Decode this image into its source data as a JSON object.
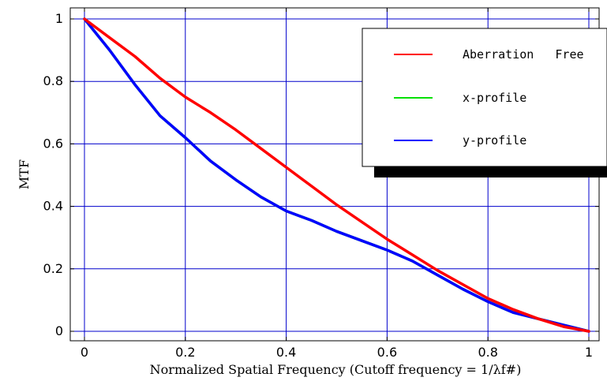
{
  "chart_data": {
    "type": "line",
    "title": "",
    "xlabel": "Normalized   Spatial   Frequency   (Cutoff   frequency   =  1/λf#)",
    "ylabel": "MTF",
    "xlim": [
      0,
      1
    ],
    "ylim": [
      0,
      1
    ],
    "x_ticks": [
      "0",
      "0.2",
      "0.4",
      "0.6",
      "0.8",
      "1"
    ],
    "y_ticks": [
      "0",
      "0.2",
      "0.4",
      "0.6",
      "0.8",
      "1"
    ],
    "grid": true,
    "legend_position": "top-right",
    "series": [
      {
        "name": "Aberration   Free",
        "color": "#ff0000",
        "x": [
          0,
          0.05,
          0.1,
          0.15,
          0.2,
          0.25,
          0.3,
          0.35,
          0.4,
          0.45,
          0.5,
          0.55,
          0.6,
          0.65,
          0.7,
          0.75,
          0.8,
          0.85,
          0.9,
          0.95,
          1.0
        ],
        "y": [
          1.0,
          0.94,
          0.88,
          0.81,
          0.75,
          0.7,
          0.645,
          0.585,
          0.525,
          0.465,
          0.405,
          0.35,
          0.295,
          0.245,
          0.195,
          0.15,
          0.105,
          0.07,
          0.04,
          0.015,
          0.0
        ]
      },
      {
        "name": "x-profile",
        "color": "#00e000",
        "x": [
          0,
          0.05,
          0.1,
          0.15,
          0.2,
          0.25,
          0.3,
          0.35,
          0.4,
          0.45,
          0.5,
          0.55,
          0.6,
          0.65,
          0.7,
          0.75,
          0.8,
          0.85,
          0.9,
          0.95,
          1.0
        ],
        "y": [
          1.0,
          0.9,
          0.79,
          0.69,
          0.62,
          0.545,
          0.485,
          0.43,
          0.385,
          0.355,
          0.32,
          0.29,
          0.26,
          0.225,
          0.18,
          0.135,
          0.095,
          0.06,
          0.04,
          0.02,
          0.0
        ]
      },
      {
        "name": "y-profile",
        "color": "#0000ff",
        "x": [
          0,
          0.05,
          0.1,
          0.15,
          0.2,
          0.25,
          0.3,
          0.35,
          0.4,
          0.45,
          0.5,
          0.55,
          0.6,
          0.65,
          0.7,
          0.75,
          0.8,
          0.85,
          0.9,
          0.95,
          1.0
        ],
        "y": [
          1.0,
          0.9,
          0.79,
          0.69,
          0.62,
          0.545,
          0.485,
          0.43,
          0.385,
          0.355,
          0.32,
          0.29,
          0.26,
          0.225,
          0.18,
          0.135,
          0.095,
          0.06,
          0.04,
          0.02,
          0.0
        ]
      }
    ]
  }
}
